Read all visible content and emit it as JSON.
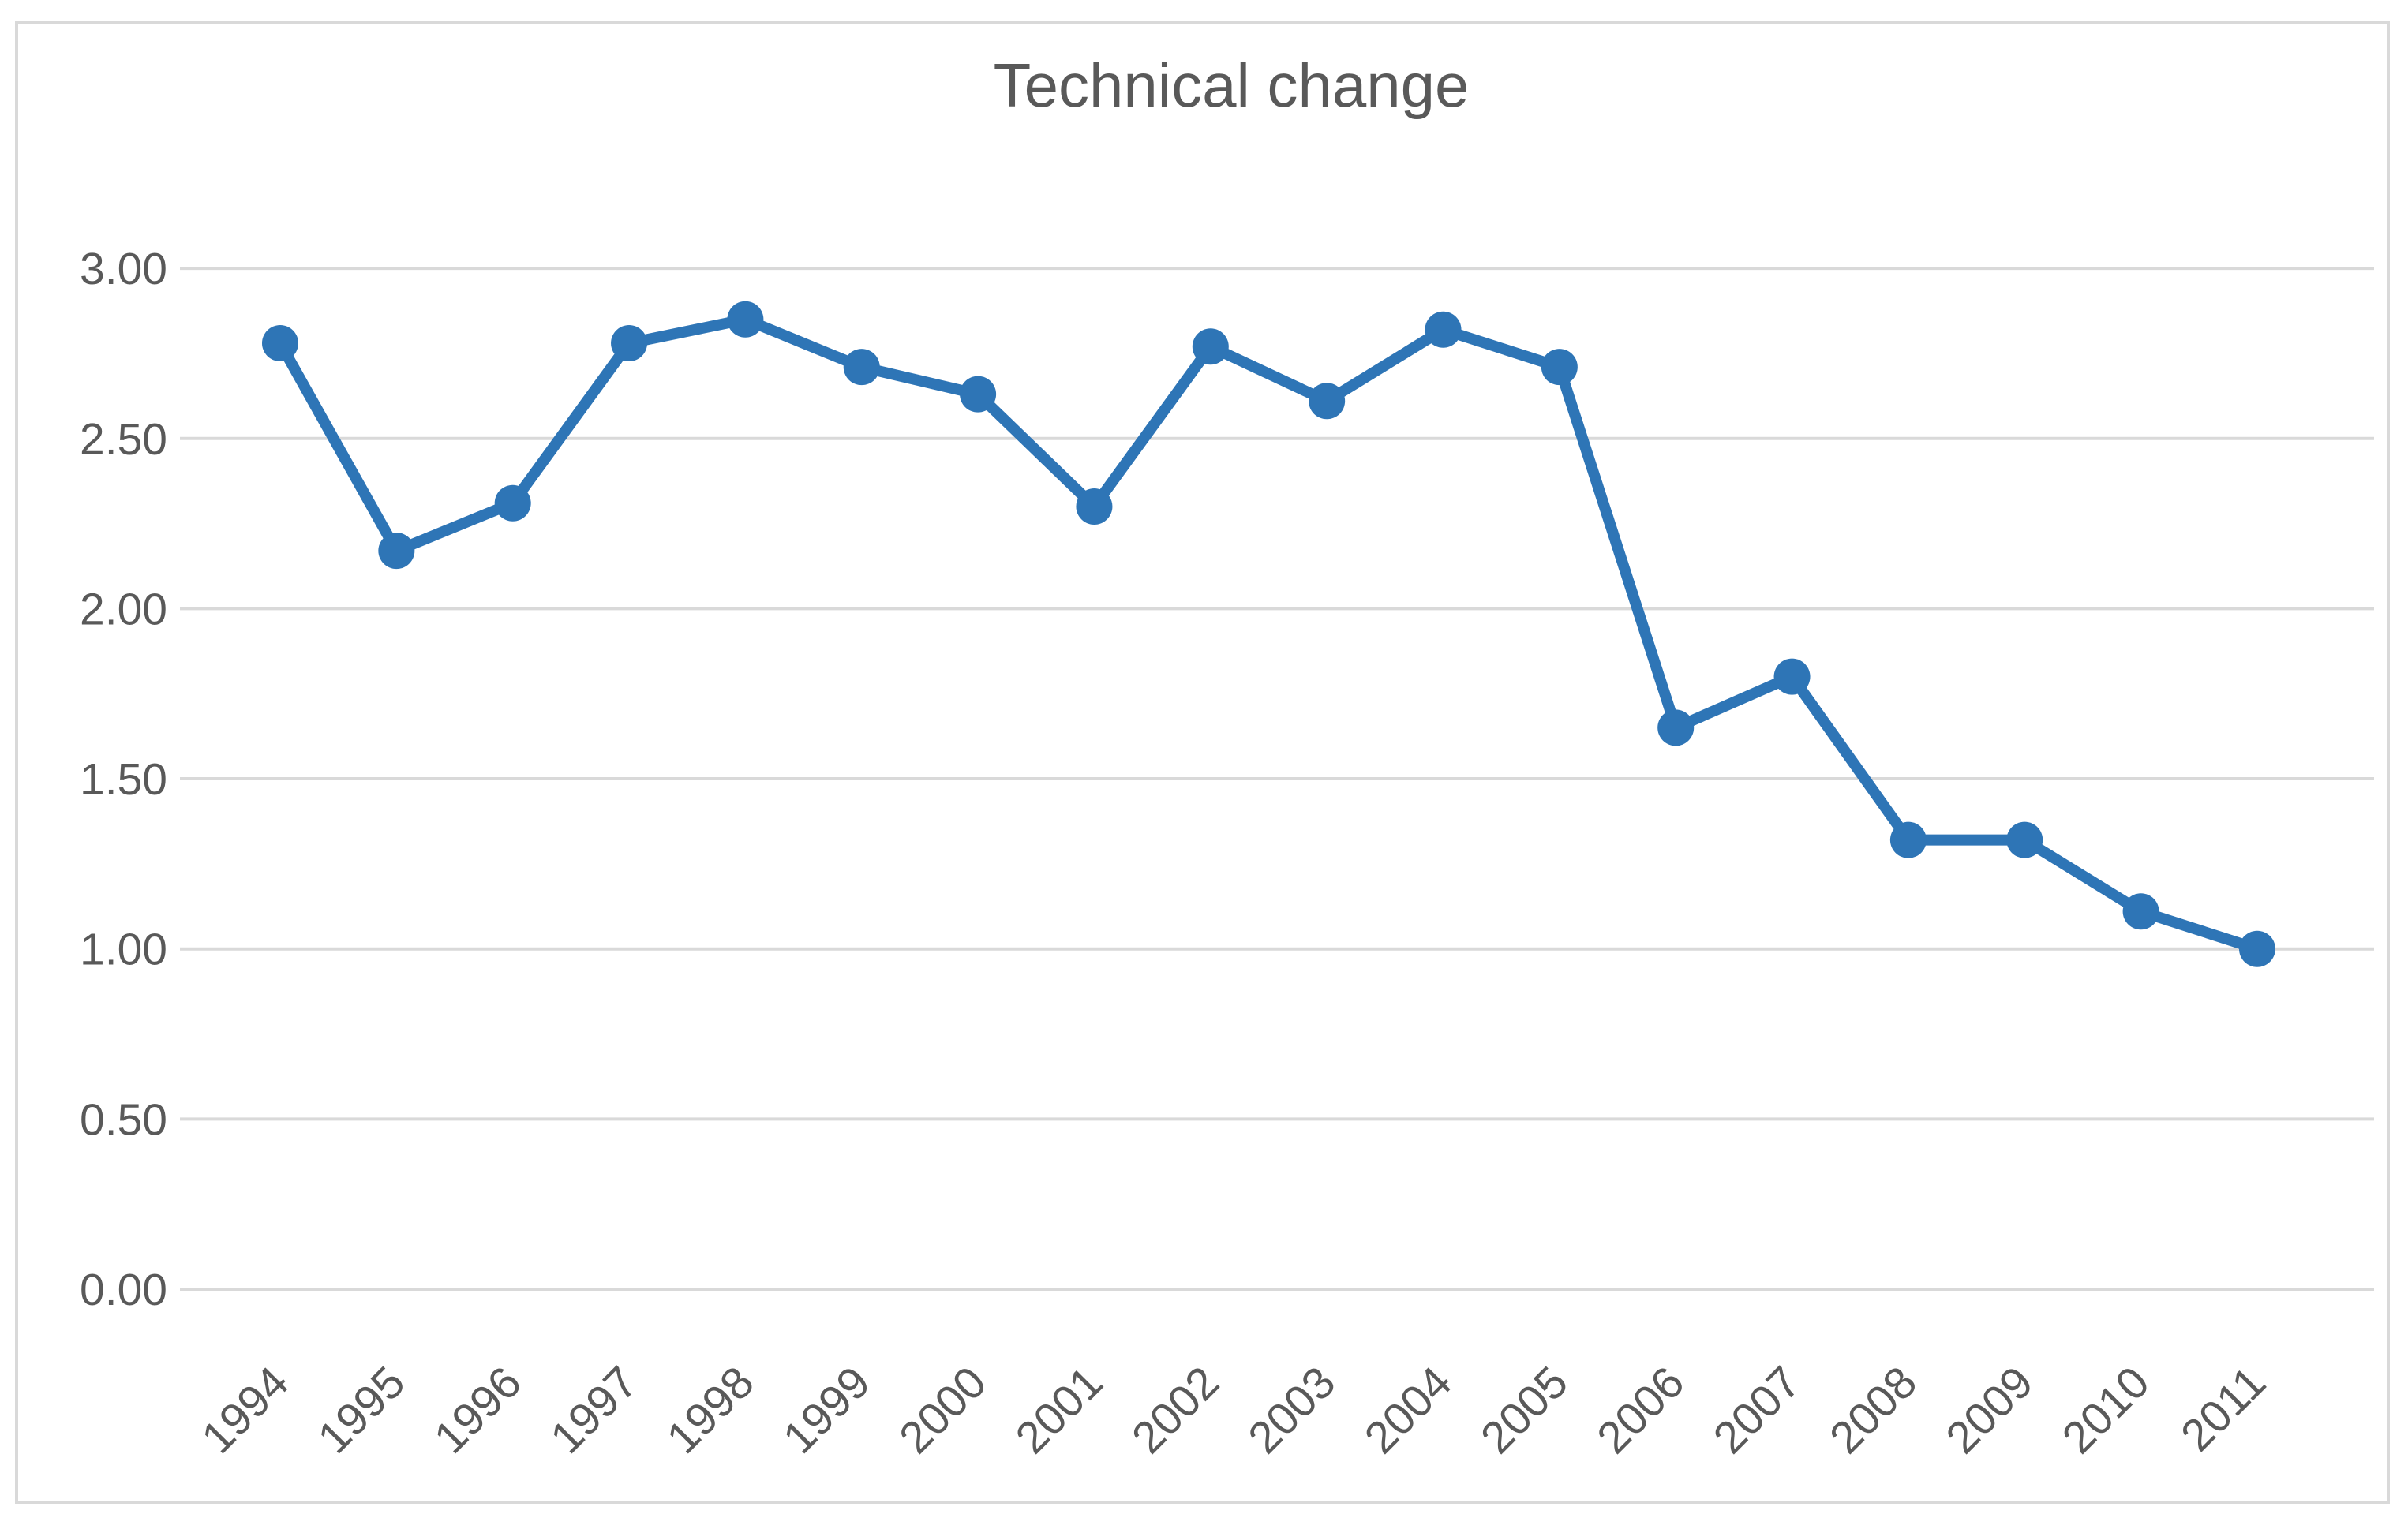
{
  "chart_data": {
    "type": "line",
    "title": "Technical change",
    "categories": [
      "1994",
      "1995",
      "1996",
      "1997",
      "1998",
      "1999",
      "2000",
      "2001",
      "2002",
      "2003",
      "2004",
      "2005",
      "2006",
      "2007",
      "2008",
      "2009",
      "2010",
      "2011"
    ],
    "series": [
      {
        "name": "Technical change",
        "values": [
          2.78,
          2.17,
          2.31,
          2.78,
          2.85,
          2.71,
          2.63,
          2.3,
          2.77,
          2.61,
          2.82,
          2.71,
          1.65,
          1.8,
          1.32,
          1.32,
          1.11,
          1.0
        ]
      }
    ],
    "xlabel": "",
    "ylabel": "",
    "ylim": [
      0.0,
      3.3
    ],
    "yticks": [
      0.0,
      0.5,
      1.0,
      1.5,
      2.0,
      2.5,
      3.0
    ],
    "ytick_labels": [
      "0.00",
      "0.50",
      "1.00",
      "1.50",
      "2.00",
      "2.50",
      "3.00"
    ],
    "xtick_rotation_degrees": 45,
    "grid": "horizontal",
    "legend": "none",
    "colors": {
      "line": "#2E75B6",
      "marker": "#2E75B6",
      "gridline": "#D9D9D9",
      "frame_border": "#D9D9D9",
      "axis_text": "#595959",
      "title_text": "#595959",
      "background": "#FFFFFF"
    }
  }
}
